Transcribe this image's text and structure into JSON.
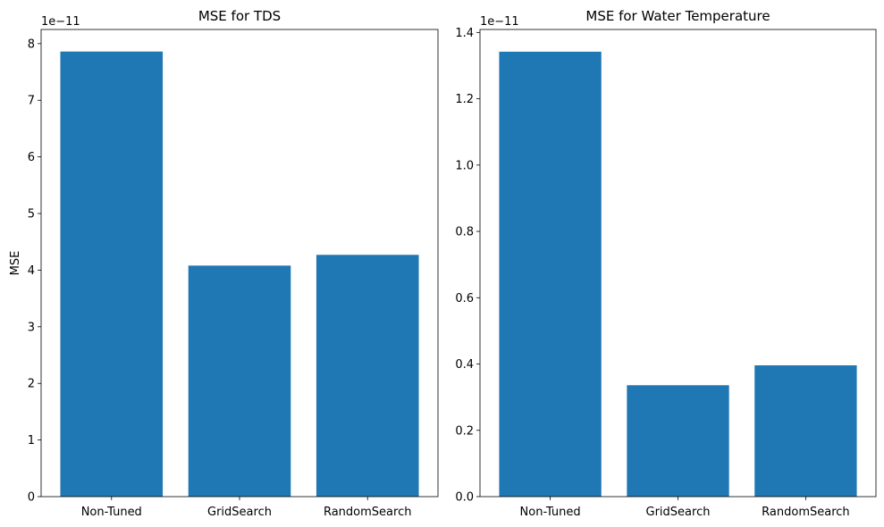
{
  "chart_data": [
    {
      "type": "bar",
      "title": "MSE for TDS",
      "xlabel": "",
      "ylabel": "MSE",
      "offset_text": "1e−11",
      "categories": [
        "Non-Tuned",
        "GridSearch",
        "RandomSearch"
      ],
      "values": [
        7.86,
        4.08,
        4.27
      ],
      "ylim": [
        0,
        8.25
      ],
      "yticks": [
        0,
        1,
        2,
        3,
        4,
        5,
        6,
        7,
        8
      ],
      "ytick_labels": [
        "0",
        "1",
        "2",
        "3",
        "4",
        "5",
        "6",
        "7",
        "8"
      ],
      "bar_color": "#1f77b4",
      "grid": false
    },
    {
      "type": "bar",
      "title": "MSE for Water Temperature",
      "xlabel": "",
      "ylabel": "",
      "offset_text": "1e−11",
      "categories": [
        "Non-Tuned",
        "GridSearch",
        "RandomSearch"
      ],
      "values": [
        1.342,
        0.336,
        0.396
      ],
      "ylim": [
        0,
        1.409
      ],
      "yticks": [
        0,
        0.2,
        0.4,
        0.6,
        0.8,
        1.0,
        1.2,
        1.4
      ],
      "ytick_labels": [
        "0.0",
        "0.2",
        "0.4",
        "0.6",
        "0.8",
        "1.0",
        "1.2",
        "1.4"
      ],
      "bar_color": "#1f77b4",
      "grid": false
    }
  ]
}
